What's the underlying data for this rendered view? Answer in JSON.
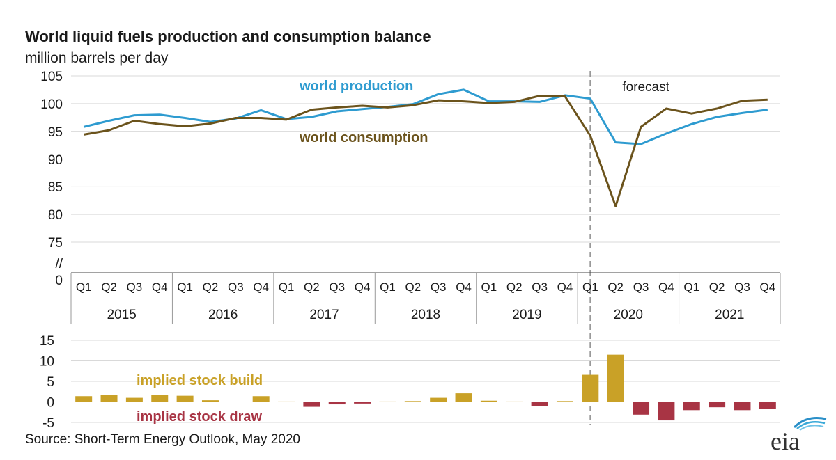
{
  "chart_data": {
    "type": "line",
    "title": "World liquid fuels production and consumption balance",
    "subtitle": "million barrels per day",
    "categories": [
      "Q1",
      "Q2",
      "Q3",
      "Q4",
      "Q1",
      "Q2",
      "Q3",
      "Q4",
      "Q1",
      "Q2",
      "Q3",
      "Q4",
      "Q1",
      "Q2",
      "Q3",
      "Q4",
      "Q1",
      "Q2",
      "Q3",
      "Q4",
      "Q1",
      "Q2",
      "Q3",
      "Q4",
      "Q1",
      "Q2",
      "Q3",
      "Q4"
    ],
    "years": [
      "2015",
      "2016",
      "2017",
      "2018",
      "2019",
      "2020",
      "2021"
    ],
    "top": {
      "yticks": [
        "105",
        "100",
        "95",
        "90",
        "85",
        "80",
        "75",
        "//",
        "0"
      ],
      "ylim": [
        75,
        105
      ],
      "series": [
        {
          "name": "world production",
          "color": "#2e9bd0",
          "values": [
            95.8,
            96.9,
            97.9,
            98.0,
            97.4,
            96.7,
            97.3,
            98.8,
            97.2,
            97.6,
            98.6,
            99.0,
            99.4,
            99.9,
            101.7,
            102.5,
            100.4,
            100.4,
            100.3,
            101.5,
            100.9,
            93.0,
            92.7,
            94.6,
            96.3,
            97.6,
            98.3,
            98.9
          ]
        },
        {
          "name": "world consumption",
          "color": "#6b531c",
          "values": [
            94.4,
            95.2,
            96.9,
            96.3,
            95.9,
            96.4,
            97.4,
            97.4,
            97.1,
            98.9,
            99.3,
            99.6,
            99.3,
            99.7,
            100.6,
            100.4,
            100.1,
            100.3,
            101.4,
            101.3,
            94.2,
            81.5,
            95.8,
            99.1,
            98.2,
            99.1,
            100.5,
            100.7
          ]
        }
      ],
      "forecast_label": "forecast",
      "forecast_start_index": 20.5
    },
    "bottom": {
      "type": "bar",
      "yticks": [
        "15",
        "10",
        "5",
        "0",
        "-5"
      ],
      "ylim": [
        -5,
        15
      ],
      "values": [
        1.4,
        1.7,
        1.0,
        1.7,
        1.5,
        0.4,
        0.0,
        1.4,
        0.1,
        -1.2,
        -0.6,
        -0.4,
        0.1,
        0.2,
        1.0,
        2.1,
        0.3,
        0.1,
        -1.1,
        0.2,
        6.6,
        11.5,
        -3.1,
        -4.5,
        -2.0,
        -1.3,
        -2.0,
        -1.7
      ],
      "positive_color": "#c9a127",
      "negative_color": "#a83444",
      "build_label": "implied stock  build",
      "draw_label": "implied stock draw"
    },
    "source": "Source: Short-Term Energy Outlook, May 2020",
    "logo_text": "eia"
  }
}
